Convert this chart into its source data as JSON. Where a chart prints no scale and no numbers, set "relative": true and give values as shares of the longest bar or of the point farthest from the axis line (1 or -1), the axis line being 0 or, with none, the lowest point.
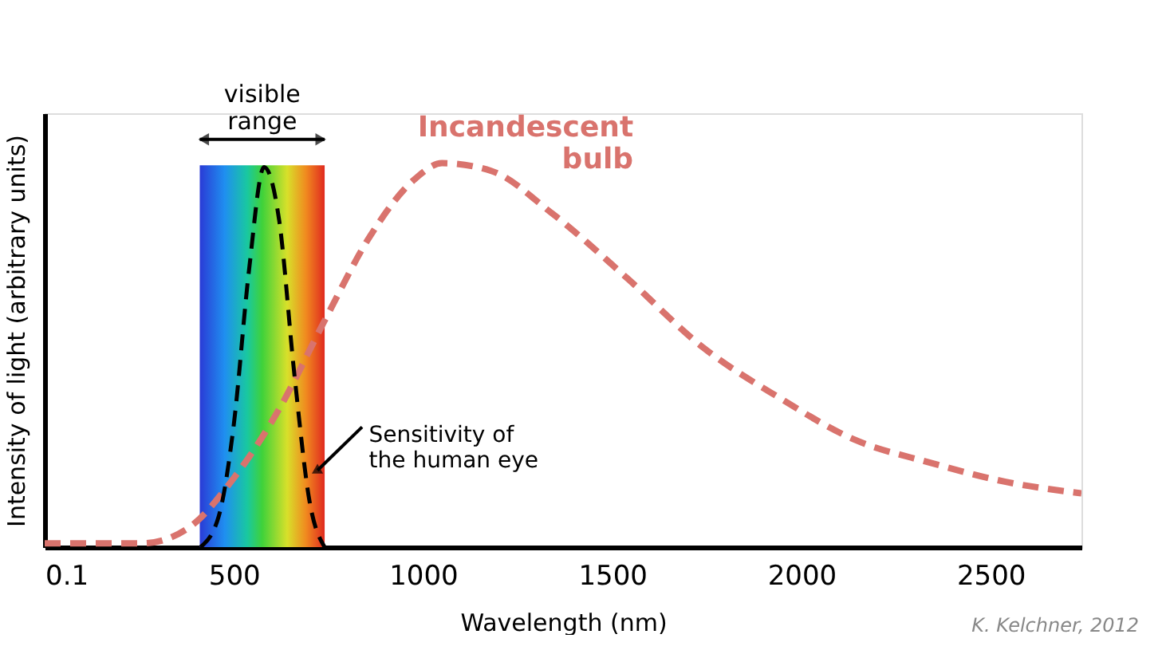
{
  "chart_data": {
    "type": "line",
    "relative": true,
    "xlabel": "Wavelength (nm)",
    "ylabel": "Intensity of light (arbitrary units)",
    "xlim": [
      0.1,
      2740
    ],
    "xticks": [
      0.1,
      500,
      1000,
      1500,
      2000,
      2500
    ],
    "series": [
      {
        "name": "Incandescent\nbulb",
        "color": "#d9736d",
        "line_style": "dashed",
        "x": [
          0.1,
          260,
          380,
          500,
          620,
          740,
          860,
          980,
          1050,
          1180,
          1340,
          1540,
          1740,
          1940,
          2140,
          2340,
          2540,
          2740
        ],
        "values": [
          0.01,
          0.01,
          0.05,
          0.18,
          0.36,
          0.59,
          0.81,
          0.96,
          1,
          0.98,
          0.87,
          0.7,
          0.52,
          0.39,
          0.28,
          0.22,
          0.17,
          0.14
        ]
      },
      {
        "color": "#000000",
        "line_style": "dashed",
        "x": [
          412,
          460,
          500,
          540,
          580,
          620,
          660,
          700,
          740
        ],
        "values": [
          0,
          0.08,
          0.32,
          0.72,
          0.99,
          0.85,
          0.45,
          0.12,
          0
        ]
      }
    ],
    "bands": [
      {
        "axis": "x",
        "from": 410,
        "to": 740,
        "label": "visible\nrange"
      }
    ],
    "annotations": [
      {
        "text": "Sensitivity of\nthe human eye",
        "x": 680,
        "y": 0.2
      },
      "K. Kelchner, 2012"
    ],
    "marker": "none"
  }
}
